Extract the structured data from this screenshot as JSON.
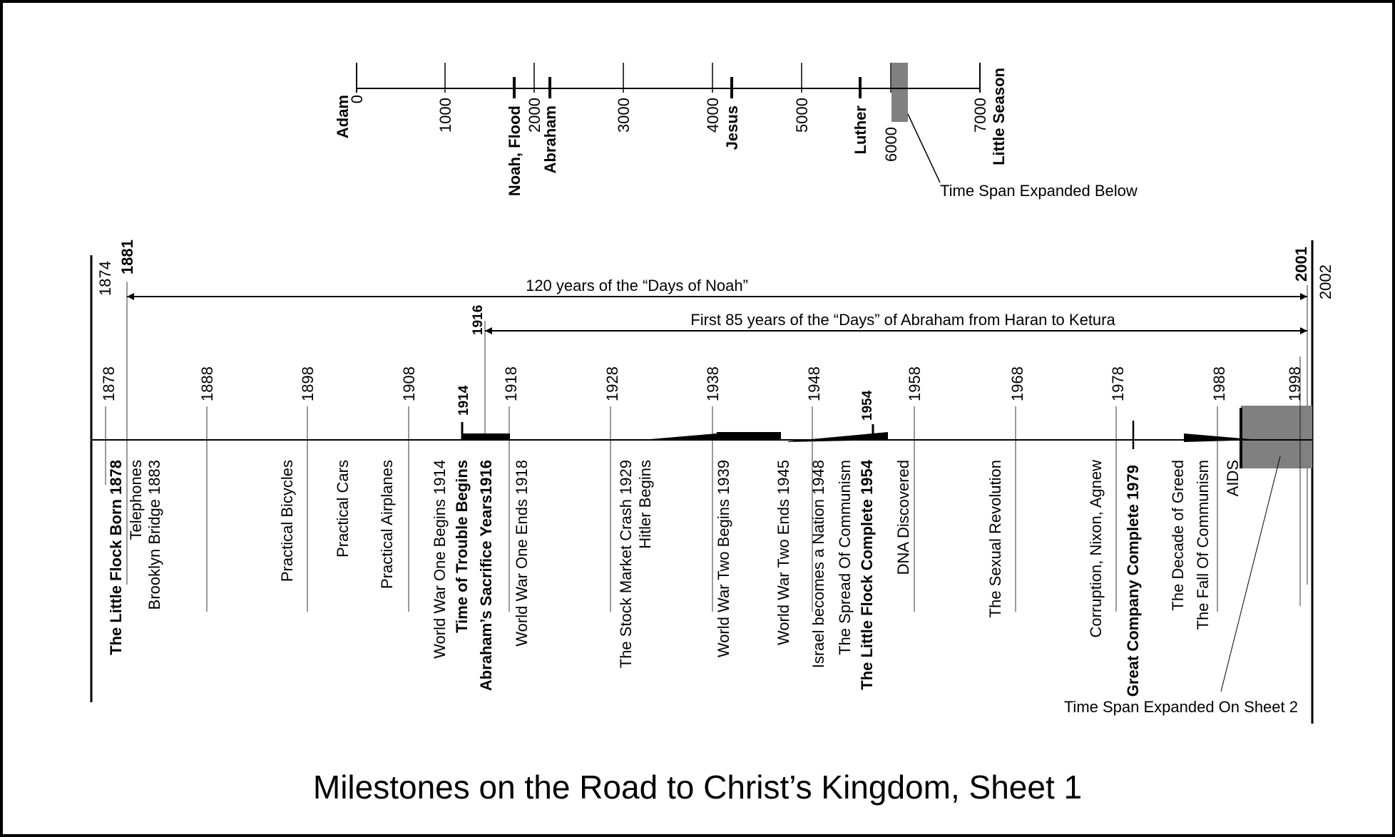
{
  "title": "Milestones on the Road to Christ’s Kingdom, Sheet 1",
  "top_timeline": {
    "ticks": [
      {
        "year": "0",
        "name": "Adam"
      },
      {
        "year": "1000"
      },
      {
        "year": "2000"
      },
      {
        "year": "3000"
      },
      {
        "year": "4000"
      },
      {
        "year": "5000"
      },
      {
        "year": "6000"
      },
      {
        "year": "7000",
        "name": "Little Season"
      }
    ],
    "markers": [
      {
        "label": "Noah, Flood",
        "year": 1656
      },
      {
        "label": "Abraham",
        "year": 2050
      },
      {
        "label": "Jesus",
        "year": 4220
      },
      {
        "label": "Luther",
        "year": 5670
      }
    ],
    "expanded_callout": "Time Span Expanded Below"
  },
  "main_timeline": {
    "edge_years": {
      "start": "1874",
      "start_bold": "1881",
      "end_bold": "2001",
      "end": "2002"
    },
    "spans": [
      {
        "label": "120 years of the “Days of Noah”",
        "from": 1881,
        "to": 2001
      },
      {
        "label": "First 85 years of the “Days” of Abraham from Haran to Ketura",
        "from": 1916,
        "to": 2001
      }
    ],
    "span_start_label": "1916",
    "decade_ticks": [
      "1878",
      "1888",
      "1898",
      "1908",
      "1918",
      "1928",
      "1938",
      "1948",
      "1958",
      "1968",
      "1978",
      "1988",
      "1998"
    ],
    "point_labels": {
      "y1914": "1914",
      "y1954": "1954"
    },
    "events": [
      {
        "label": "The Little Flock Born 1878",
        "bold": true
      },
      {
        "label": "Telephones",
        "bold": false
      },
      {
        "label": "Brooklyn Bridge 1883",
        "bold": false
      },
      {
        "label": "Practical Bicycles",
        "bold": false
      },
      {
        "label": "Practical Cars",
        "bold": false
      },
      {
        "label": "Practical Airplanes",
        "bold": false
      },
      {
        "label": "World War One Begins 1914",
        "bold": false
      },
      {
        "label": "Time of Trouble Begins",
        "bold": true
      },
      {
        "label": "Abraham’s Sacrifice Years1916",
        "bold": true
      },
      {
        "label": "World War One Ends 1918",
        "bold": false
      },
      {
        "label": "The Stock Market Crash 1929",
        "bold": false
      },
      {
        "label": "Hitler Begins",
        "bold": false
      },
      {
        "label": "World War Two Begins 1939",
        "bold": false
      },
      {
        "label": "World War Two Ends 1945",
        "bold": false
      },
      {
        "label": "Israel becomes a Nation 1948",
        "bold": false
      },
      {
        "label": "The Spread Of Communism",
        "bold": false
      },
      {
        "label": "The Little Flock Complete 1954",
        "bold": true
      },
      {
        "label": "DNA Discovered",
        "bold": false
      },
      {
        "label": "The Sexual Revolution",
        "bold": false
      },
      {
        "label": "Corruption, Nixon, Agnew",
        "bold": false
      },
      {
        "label": "Great Company Complete 1979",
        "bold": true
      },
      {
        "label": "The Decade of Greed",
        "bold": false
      },
      {
        "label": "The Fall Of Communism",
        "bold": false
      },
      {
        "label": "AIDS",
        "bold": false
      }
    ],
    "expanded_callout": "Time Span Expanded On Sheet 2"
  },
  "colors": {
    "ink": "#000000",
    "highlight": "#808080"
  }
}
